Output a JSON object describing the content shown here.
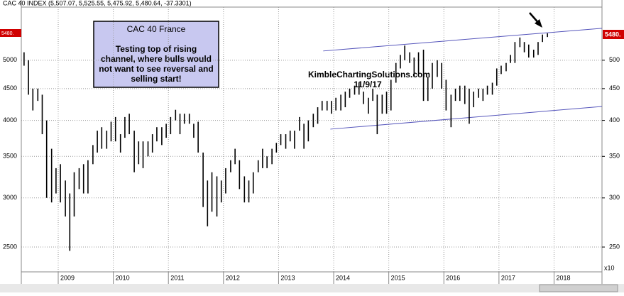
{
  "chart_data": {
    "type": "ohlc",
    "title": "CAC 40 INDEX (5,507.07, 5,525.55, 5,475.92, 5,480.64, -37.3301)",
    "last_price_label": "5480.",
    "right_axis_multiplier": "x10",
    "watermark": [
      "KimbleChartingSolutions.com",
      "11/9/17"
    ],
    "annotation_lines": [
      "CAC 40 France",
      "Testing top of rising",
      "channel, where bulls would",
      "not want to see reversal and",
      "selling start!"
    ],
    "log_scale": true,
    "grid": true,
    "color": "#000000",
    "xlim": [
      2008.33,
      2018.87
    ],
    "xticks": [
      2009,
      2010,
      2011,
      2012,
      2013,
      2014,
      2015,
      2016,
      2017,
      2018
    ],
    "ylim": [
      2280,
      6090
    ],
    "yticks": [
      2500,
      3000,
      3500,
      4000,
      4500,
      5000
    ],
    "right_yticks": [
      {
        "value": 2500,
        "label": "250"
      },
      {
        "value": 3000,
        "label": "300"
      },
      {
        "value": 3500,
        "label": "350"
      },
      {
        "value": 4000,
        "label": "400"
      },
      {
        "value": 4500,
        "label": "450"
      },
      {
        "value": 5000,
        "label": "500"
      }
    ],
    "channel": {
      "color": "#5555bb",
      "upper": {
        "x": [
          2013.81,
          2018.87
        ],
        "y": [
          5175,
          5630
        ]
      },
      "lower": {
        "x": [
          2013.94,
          2018.87
        ],
        "y": [
          3872,
          4212
        ]
      }
    },
    "x": [
      2008.38,
      2008.46,
      2008.54,
      2008.63,
      2008.71,
      2008.79,
      2008.88,
      2008.96,
      2009.04,
      2009.13,
      2009.21,
      2009.29,
      2009.38,
      2009.46,
      2009.54,
      2009.63,
      2009.71,
      2009.79,
      2009.88,
      2009.96,
      2010.04,
      2010.13,
      2010.21,
      2010.29,
      2010.38,
      2010.46,
      2010.54,
      2010.63,
      2010.71,
      2010.79,
      2010.88,
      2010.96,
      2011.04,
      2011.13,
      2011.21,
      2011.29,
      2011.38,
      2011.46,
      2011.54,
      2011.63,
      2011.71,
      2011.79,
      2011.88,
      2011.96,
      2012.04,
      2012.13,
      2012.21,
      2012.29,
      2012.38,
      2012.46,
      2012.54,
      2012.63,
      2012.71,
      2012.79,
      2012.88,
      2012.96,
      2013.04,
      2013.13,
      2013.21,
      2013.29,
      2013.38,
      2013.46,
      2013.54,
      2013.63,
      2013.71,
      2013.79,
      2013.88,
      2013.96,
      2014.04,
      2014.13,
      2014.21,
      2014.29,
      2014.38,
      2014.46,
      2014.54,
      2014.63,
      2014.71,
      2014.79,
      2014.88,
      2014.96,
      2015.04,
      2015.13,
      2015.21,
      2015.29,
      2015.38,
      2015.46,
      2015.54,
      2015.63,
      2015.71,
      2015.79,
      2015.88,
      2015.96,
      2016.04,
      2016.13,
      2016.21,
      2016.29,
      2016.38,
      2016.46,
      2016.54,
      2016.63,
      2016.71,
      2016.79,
      2016.88,
      2016.96,
      2017.04,
      2017.13,
      2017.21,
      2017.29,
      2017.38,
      2017.46,
      2017.54,
      2017.63,
      2017.71,
      2017.79,
      2017.88
    ],
    "high": [
      5150,
      5000,
      4500,
      4500,
      4400,
      4000,
      3600,
      3350,
      3400,
      3200,
      3050,
      3300,
      3350,
      3400,
      3450,
      3650,
      3850,
      3900,
      3850,
      3980,
      4050,
      3800,
      4050,
      4100,
      3850,
      3700,
      3700,
      3700,
      3800,
      3900,
      3900,
      3950,
      4050,
      4160,
      4100,
      4100,
      4100,
      3950,
      3980,
      3550,
      3200,
      3300,
      3250,
      3200,
      3350,
      3450,
      3600,
      3450,
      3250,
      3200,
      3300,
      3450,
      3600,
      3500,
      3600,
      3680,
      3800,
      3800,
      3850,
      3850,
      4050,
      3950,
      4000,
      4100,
      4200,
      4300,
      4300,
      4300,
      4350,
      4400,
      4450,
      4500,
      4550,
      4600,
      4450,
      4350,
      4500,
      4400,
      4400,
      4450,
      4650,
      4950,
      5100,
      5280,
      5150,
      5050,
      5150,
      5200,
      4700,
      4950,
      5000,
      4950,
      4650,
      4400,
      4500,
      4550,
      4550,
      4500,
      4450,
      4500,
      4500,
      4550,
      4600,
      4850,
      4900,
      4950,
      5100,
      5350,
      5440,
      5350,
      5300,
      5200,
      5350,
      5500,
      5525
    ],
    "low": [
      4900,
      4400,
      4150,
      4300,
      3800,
      3000,
      2950,
      3050,
      2950,
      2800,
      2465,
      2800,
      3100,
      3050,
      3050,
      3400,
      3550,
      3600,
      3600,
      3700,
      3700,
      3550,
      3750,
      3800,
      3300,
      3400,
      3350,
      3500,
      3550,
      3700,
      3650,
      3750,
      3800,
      4000,
      3800,
      3950,
      3950,
      3750,
      3550,
      2900,
      2700,
      2850,
      2800,
      2950,
      3050,
      3300,
      3400,
      3100,
      2950,
      2950,
      3050,
      3300,
      3350,
      3350,
      3400,
      3550,
      3650,
      3600,
      3700,
      3600,
      3850,
      3600,
      3700,
      3900,
      3950,
      4150,
      4150,
      4100,
      4150,
      4150,
      4200,
      4350,
      4400,
      4400,
      4250,
      4100,
      4300,
      3800,
      4100,
      4100,
      4150,
      4600,
      4850,
      5000,
      4950,
      4700,
      4750,
      4300,
      4300,
      4500,
      4700,
      4500,
      4150,
      3900,
      4300,
      4300,
      4250,
      3950,
      4200,
      4350,
      4300,
      4400,
      4400,
      4550,
      4750,
      4800,
      4950,
      4950,
      5250,
      5150,
      5050,
      5050,
      5100,
      5350,
      5450
    ]
  }
}
